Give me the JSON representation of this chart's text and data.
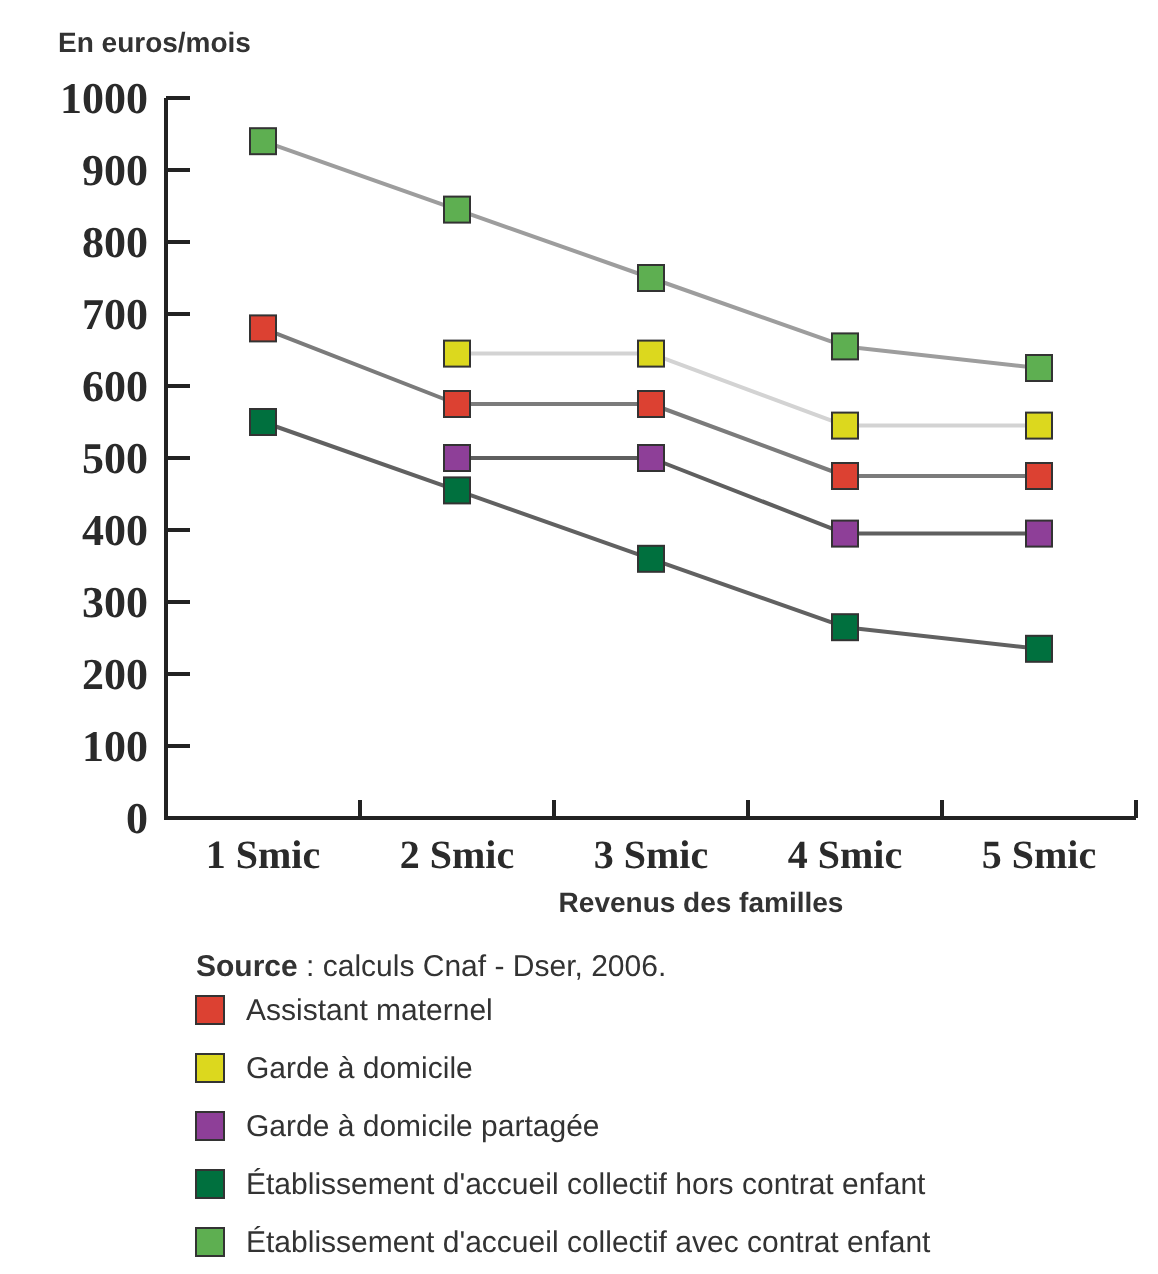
{
  "chart_data": {
    "type": "line",
    "ylabel": "En euros/mois",
    "xlabel": "Revenus des familles",
    "annotations": [
      "Source : calculs Cnaf - Dser, 2006."
    ],
    "categories": [
      "1 Smic",
      "2 Smic",
      "3 Smic",
      "4 Smic",
      "5 Smic"
    ],
    "series": [
      {
        "name": "Assistant maternel",
        "color": "#dc4132",
        "values": [
          680,
          575,
          575,
          475,
          475
        ]
      },
      {
        "name": "Garde à domicile",
        "color": "#dcd81e",
        "values": [
          null,
          645,
          645,
          545,
          545
        ]
      },
      {
        "name": "Garde à domicile partagée",
        "color": "#8e3f98",
        "values": [
          null,
          500,
          500,
          395,
          395
        ]
      },
      {
        "name": "Établissement d'accueil collectif hors contrat enfant",
        "color": "#00703e",
        "values": [
          550,
          455,
          360,
          265,
          235
        ]
      },
      {
        "name": "Établissement d'accueil collectif avec contrat enfant",
        "color": "#5eaf51",
        "values": [
          940,
          845,
          750,
          655,
          625
        ]
      }
    ],
    "ylim": [
      0,
      1000
    ],
    "yticks": [
      0,
      100,
      200,
      300,
      400,
      500,
      600,
      700,
      800,
      900,
      1000
    ],
    "grid": false,
    "legend": "bottom",
    "marker": "square",
    "line_style": "solid"
  }
}
